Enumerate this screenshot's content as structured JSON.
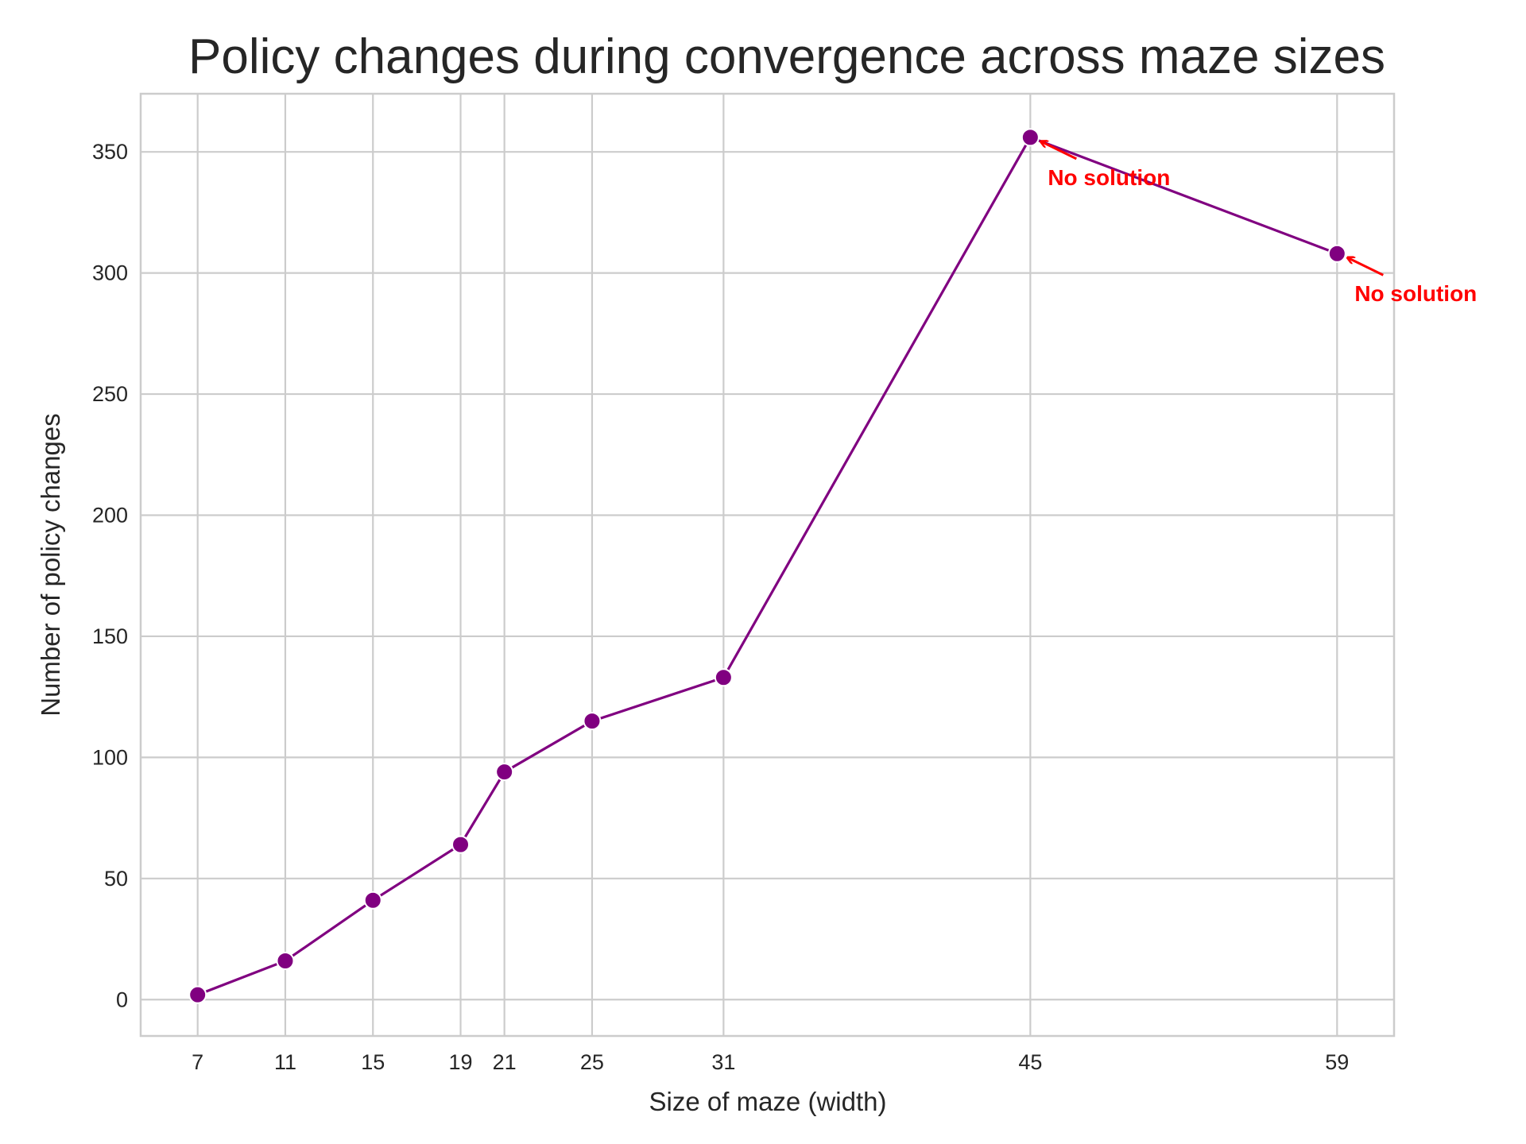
{
  "chart_data": {
    "type": "line",
    "title": "Policy changes during convergence across maze sizes",
    "xlabel": "Size of maze (width)",
    "ylabel": "Number of policy changes",
    "x": [
      7,
      11,
      15,
      19,
      21,
      25,
      31,
      45,
      59
    ],
    "series": [
      {
        "values": [
          2,
          16,
          41,
          64,
          94,
          115,
          133,
          356,
          308
        ],
        "color": "#800080"
      }
    ],
    "xticks": [
      "7",
      "11",
      "15",
      "19",
      "21",
      "25",
      "31",
      "45",
      "59"
    ],
    "yticks": [
      "0",
      "50",
      "100",
      "150",
      "200",
      "250",
      "300",
      "350"
    ],
    "ytick_values": [
      0,
      50,
      100,
      150,
      200,
      250,
      300,
      350
    ],
    "xlim": [
      4.4,
      61.6
    ],
    "ylim": [
      -15,
      374
    ],
    "grid": true,
    "annotations": [
      {
        "text": "No solution",
        "x": 45,
        "y": 356,
        "color": "#ff0000"
      },
      {
        "text": "No solution",
        "x": 59,
        "y": 308,
        "color": "#ff0000"
      }
    ]
  }
}
